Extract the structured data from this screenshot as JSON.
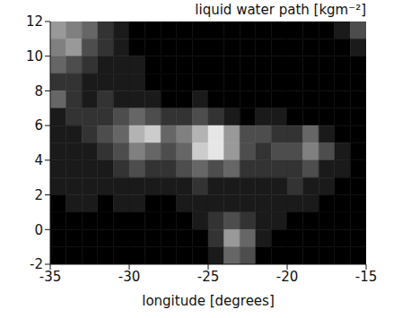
{
  "chart_data": {
    "type": "heatmap",
    "title": "liquid water path [kgm⁻²]",
    "x_label": "longitude [degrees]",
    "xlim": [
      -35,
      -15
    ],
    "xticks": [
      -35,
      -30,
      -25,
      -20,
      -15
    ],
    "ylim": [
      -2,
      12
    ],
    "yticks": [
      -2,
      0,
      2,
      4,
      6,
      8,
      10,
      12
    ],
    "zlim": [
      0,
      0.5
    ],
    "cells": {
      "x": [
        -34.5,
        -33.5,
        -32.5,
        -31.5,
        -30.5,
        -29.5,
        -28.5,
        -27.5,
        -26.5,
        -25.5,
        -24.5,
        -23.5,
        -22.5,
        -21.5,
        -20.5,
        -19.5,
        -18.5,
        -17.5,
        -16.5,
        -15.5
      ],
      "y": [
        11.5,
        10.5,
        9.5,
        8.5,
        7.5,
        6.5,
        5.5,
        4.5,
        3.5,
        2.5,
        1.5,
        0.5,
        -0.5,
        -1.5
      ],
      "z": [
        [
          0.3,
          0.25,
          0.2,
          0.1,
          0.05,
          0,
          0,
          0,
          0,
          0,
          0,
          0,
          0,
          0,
          0,
          0,
          0,
          0,
          0.05,
          0.15
        ],
        [
          0.25,
          0.3,
          0.15,
          0.1,
          0.05,
          0,
          0,
          0,
          0,
          0,
          0,
          0,
          0,
          0,
          0,
          0,
          0,
          0,
          0,
          0.05
        ],
        [
          0.2,
          0.15,
          0.1,
          0.05,
          0.05,
          0.05,
          0,
          0,
          0,
          0,
          0,
          0,
          0,
          0,
          0,
          0,
          0,
          0,
          0,
          0
        ],
        [
          0.1,
          0.1,
          0.05,
          0.05,
          0.05,
          0.05,
          0,
          0,
          0,
          0,
          0,
          0,
          0,
          0,
          0,
          0,
          0,
          0,
          0,
          0
        ],
        [
          0.2,
          0.1,
          0.05,
          0.1,
          0.05,
          0.05,
          0.05,
          0,
          0,
          0.05,
          0,
          0,
          0,
          0,
          0,
          0,
          0,
          0,
          0,
          0
        ],
        [
          0.05,
          0.1,
          0.1,
          0.1,
          0.15,
          0.2,
          0.15,
          0.1,
          0.1,
          0.15,
          0.1,
          0.05,
          0,
          0.05,
          0.05,
          0,
          0,
          0,
          0,
          0
        ],
        [
          0.05,
          0.05,
          0.1,
          0.15,
          0.2,
          0.35,
          0.4,
          0.2,
          0.25,
          0.35,
          0.45,
          0.3,
          0.15,
          0.15,
          0.1,
          0.1,
          0.2,
          0.05,
          0,
          0
        ],
        [
          0.05,
          0.05,
          0.05,
          0.1,
          0.15,
          0.25,
          0.2,
          0.15,
          0.2,
          0.4,
          0.45,
          0.3,
          0.15,
          0.1,
          0.15,
          0.15,
          0.25,
          0.15,
          0.05,
          0
        ],
        [
          0.05,
          0.05,
          0.05,
          0.05,
          0.1,
          0.15,
          0.1,
          0.1,
          0.15,
          0.2,
          0.15,
          0.2,
          0.1,
          0.1,
          0.1,
          0.1,
          0.15,
          0.05,
          0.05,
          0
        ],
        [
          0.05,
          0.05,
          0.05,
          0.05,
          0.05,
          0.05,
          0.05,
          0.05,
          0.05,
          0.1,
          0.05,
          0.05,
          0.05,
          0.05,
          0.05,
          0.1,
          0.05,
          0.05,
          0,
          0
        ],
        [
          0,
          0.05,
          0.05,
          0,
          0.05,
          0.05,
          0,
          0,
          0.05,
          0.05,
          0.05,
          0.05,
          0.05,
          0.05,
          0.05,
          0.05,
          0.05,
          0,
          0,
          0
        ],
        [
          0,
          0,
          0,
          0,
          0,
          0,
          0,
          0,
          0,
          0.05,
          0.1,
          0.15,
          0.1,
          0.05,
          0.05,
          0,
          0,
          0,
          0,
          0
        ],
        [
          0,
          0,
          0,
          0,
          0,
          0,
          0,
          0,
          0,
          0,
          0.1,
          0.3,
          0.2,
          0.05,
          0,
          0,
          0,
          0,
          0,
          0
        ],
        [
          0,
          0,
          0,
          0,
          0,
          0,
          0,
          0,
          0,
          0,
          0.05,
          0.2,
          0.15,
          0,
          0,
          0,
          0,
          0,
          0,
          0
        ]
      ]
    }
  }
}
